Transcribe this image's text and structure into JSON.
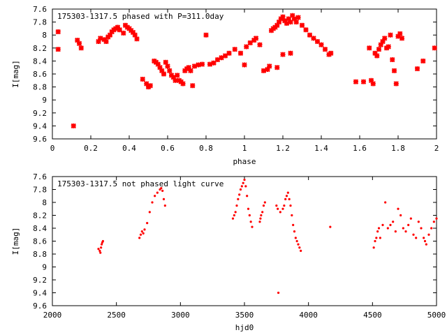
{
  "page": {
    "background": "#ffffff"
  },
  "chart_data": [
    {
      "type": "scatter",
      "title": "175303-1317.5 phased with P=311.0day",
      "xlabel": "phase",
      "ylabel": "I[mag]",
      "xlim": [
        0,
        2
      ],
      "ylim": [
        9.6,
        7.6
      ],
      "y_inverted": true,
      "xticks": [
        0,
        0.2,
        0.4,
        0.6,
        0.8,
        1,
        1.2,
        1.4,
        1.6,
        1.8,
        2
      ],
      "yticks": [
        7.6,
        7.8,
        8,
        8.2,
        8.4,
        8.6,
        8.8,
        9,
        9.2,
        9.4,
        9.6
      ],
      "marker": "star",
      "color": "#ff0000",
      "grid": false,
      "series": [
        {
          "points": [
            [
              0.03,
              7.95
            ],
            [
              0.03,
              8.22
            ],
            [
              0.11,
              9.4
            ],
            [
              0.13,
              8.08
            ],
            [
              0.14,
              8.13
            ],
            [
              0.15,
              8.2
            ],
            [
              0.24,
              8.1
            ],
            [
              0.25,
              8.05
            ],
            [
              0.27,
              8.07
            ],
            [
              0.28,
              8.1
            ],
            [
              0.29,
              8.03
            ],
            [
              0.3,
              8.0
            ],
            [
              0.31,
              7.95
            ],
            [
              0.32,
              7.92
            ],
            [
              0.33,
              7.9
            ],
            [
              0.34,
              7.88
            ],
            [
              0.35,
              7.92
            ],
            [
              0.37,
              7.97
            ],
            [
              0.38,
              7.85
            ],
            [
              0.39,
              7.88
            ],
            [
              0.4,
              7.9
            ],
            [
              0.41,
              7.93
            ],
            [
              0.42,
              7.96
            ],
            [
              0.43,
              8.0
            ],
            [
              0.44,
              8.06
            ],
            [
              0.47,
              8.68
            ],
            [
              0.49,
              8.75
            ],
            [
              0.5,
              8.8
            ],
            [
              0.51,
              8.78
            ],
            [
              0.53,
              8.4
            ],
            [
              0.54,
              8.42
            ],
            [
              0.55,
              8.45
            ],
            [
              0.56,
              8.5
            ],
            [
              0.57,
              8.55
            ],
            [
              0.58,
              8.6
            ],
            [
              0.59,
              8.42
            ],
            [
              0.6,
              8.48
            ],
            [
              0.61,
              8.55
            ],
            [
              0.62,
              8.62
            ],
            [
              0.63,
              8.65
            ],
            [
              0.64,
              8.7
            ],
            [
              0.65,
              8.62
            ],
            [
              0.66,
              8.7
            ],
            [
              0.67,
              8.72
            ],
            [
              0.68,
              8.75
            ],
            [
              0.69,
              8.55
            ],
            [
              0.7,
              8.52
            ],
            [
              0.71,
              8.5
            ],
            [
              0.72,
              8.55
            ],
            [
              0.73,
              8.78
            ],
            [
              0.74,
              8.48
            ],
            [
              0.76,
              8.46
            ],
            [
              0.78,
              8.45
            ],
            [
              0.8,
              8.0
            ],
            [
              0.82,
              8.45
            ],
            [
              0.84,
              8.43
            ],
            [
              0.86,
              8.38
            ],
            [
              0.88,
              8.35
            ],
            [
              0.9,
              8.32
            ],
            [
              0.92,
              8.28
            ],
            [
              0.95,
              8.22
            ],
            [
              0.98,
              8.28
            ],
            [
              1.0,
              8.46
            ],
            [
              1.01,
              8.18
            ],
            [
              1.03,
              8.12
            ],
            [
              1.05,
              8.08
            ],
            [
              1.06,
              8.05
            ],
            [
              1.08,
              8.15
            ],
            [
              1.1,
              8.55
            ],
            [
              1.12,
              8.53
            ],
            [
              1.13,
              8.48
            ],
            [
              1.14,
              7.93
            ],
            [
              1.15,
              7.9
            ],
            [
              1.16,
              7.88
            ],
            [
              1.17,
              7.85
            ],
            [
              1.18,
              7.8
            ],
            [
              1.19,
              7.75
            ],
            [
              1.2,
              7.72
            ],
            [
              1.21,
              7.78
            ],
            [
              1.22,
              7.82
            ],
            [
              1.23,
              7.75
            ],
            [
              1.24,
              7.8
            ],
            [
              1.25,
              7.7
            ],
            [
              1.26,
              7.75
            ],
            [
              1.27,
              7.8
            ],
            [
              1.28,
              7.73
            ],
            [
              1.3,
              7.85
            ],
            [
              1.32,
              7.92
            ],
            [
              1.34,
              8.0
            ],
            [
              1.36,
              8.05
            ],
            [
              1.38,
              8.1
            ],
            [
              1.4,
              8.15
            ],
            [
              1.42,
              8.22
            ],
            [
              1.44,
              8.3
            ],
            [
              1.45,
              8.28
            ],
            [
              1.17,
              8.5
            ],
            [
              1.2,
              8.3
            ],
            [
              1.24,
              8.28
            ],
            [
              1.58,
              8.72
            ],
            [
              1.62,
              8.72
            ],
            [
              1.65,
              8.2
            ],
            [
              1.66,
              8.7
            ],
            [
              1.67,
              8.75
            ],
            [
              1.68,
              8.28
            ],
            [
              1.69,
              8.32
            ],
            [
              1.7,
              8.22
            ],
            [
              1.71,
              8.15
            ],
            [
              1.72,
              8.1
            ],
            [
              1.73,
              8.05
            ],
            [
              1.74,
              8.2
            ],
            [
              1.75,
              8.18
            ],
            [
              1.76,
              8.0
            ],
            [
              1.77,
              8.38
            ],
            [
              1.78,
              8.55
            ],
            [
              1.79,
              8.75
            ],
            [
              1.8,
              8.02
            ],
            [
              1.81,
              7.98
            ],
            [
              1.82,
              8.05
            ],
            [
              1.9,
              8.52
            ],
            [
              1.93,
              8.4
            ],
            [
              1.99,
              8.2
            ]
          ]
        }
      ]
    },
    {
      "type": "scatter",
      "title": "175303-1317.5 not phased light curve",
      "xlabel": "hjd0",
      "ylabel": "I[mag]",
      "xlim": [
        2000,
        5000
      ],
      "ylim": [
        9.6,
        7.6
      ],
      "y_inverted": true,
      "xticks": [
        2000,
        2500,
        3000,
        3500,
        4000,
        4500,
        5000
      ],
      "yticks": [
        7.6,
        7.8,
        8,
        8.2,
        8.4,
        8.6,
        8.8,
        9,
        9.2,
        9.4,
        9.6
      ],
      "marker": "dot",
      "color": "#ff0000",
      "grid": false,
      "series": [
        {
          "points": [
            [
              2360,
              8.72
            ],
            [
              2370,
              8.75
            ],
            [
              2375,
              8.78
            ],
            [
              2380,
              8.7
            ],
            [
              2385,
              8.65
            ],
            [
              2390,
              8.62
            ],
            [
              2395,
              8.6
            ],
            [
              2680,
              8.55
            ],
            [
              2690,
              8.5
            ],
            [
              2700,
              8.45
            ],
            [
              2710,
              8.48
            ],
            [
              2720,
              8.42
            ],
            [
              2740,
              8.32
            ],
            [
              2760,
              8.15
            ],
            [
              2780,
              8.0
            ],
            [
              2800,
              7.9
            ],
            [
              2820,
              7.85
            ],
            [
              2840,
              7.8
            ],
            [
              2850,
              7.78
            ],
            [
              2860,
              7.82
            ],
            [
              2870,
              7.95
            ],
            [
              2880,
              8.05
            ],
            [
              3410,
              8.25
            ],
            [
              3420,
              8.2
            ],
            [
              3430,
              8.15
            ],
            [
              3440,
              8.05
            ],
            [
              3450,
              7.95
            ],
            [
              3460,
              7.88
            ],
            [
              3470,
              7.8
            ],
            [
              3480,
              7.75
            ],
            [
              3490,
              7.7
            ],
            [
              3500,
              7.65
            ],
            [
              3510,
              7.75
            ],
            [
              3520,
              7.9
            ],
            [
              3530,
              8.1
            ],
            [
              3540,
              8.2
            ],
            [
              3550,
              8.3
            ],
            [
              3560,
              8.38
            ],
            [
              3620,
              8.3
            ],
            [
              3625,
              8.25
            ],
            [
              3630,
              8.2
            ],
            [
              3640,
              8.15
            ],
            [
              3650,
              8.05
            ],
            [
              3660,
              8.0
            ],
            [
              3750,
              8.05
            ],
            [
              3760,
              8.1
            ],
            [
              3765,
              9.4
            ],
            [
              3780,
              8.15
            ],
            [
              3800,
              8.1
            ],
            [
              3810,
              8.05
            ],
            [
              3820,
              7.95
            ],
            [
              3830,
              7.9
            ],
            [
              3840,
              7.85
            ],
            [
              3850,
              7.95
            ],
            [
              3860,
              8.05
            ],
            [
              3870,
              8.2
            ],
            [
              3880,
              8.35
            ],
            [
              3890,
              8.45
            ],
            [
              3900,
              8.55
            ],
            [
              3910,
              8.6
            ],
            [
              3920,
              8.65
            ],
            [
              3930,
              8.7
            ],
            [
              3940,
              8.75
            ],
            [
              4170,
              8.38
            ],
            [
              4510,
              8.7
            ],
            [
              4520,
              8.6
            ],
            [
              4530,
              8.55
            ],
            [
              4540,
              8.45
            ],
            [
              4550,
              8.4
            ],
            [
              4560,
              8.55
            ],
            [
              4580,
              8.35
            ],
            [
              4600,
              8.0
            ],
            [
              4620,
              8.4
            ],
            [
              4640,
              8.35
            ],
            [
              4660,
              8.3
            ],
            [
              4680,
              8.45
            ],
            [
              4700,
              8.1
            ],
            [
              4720,
              8.2
            ],
            [
              4740,
              8.4
            ],
            [
              4760,
              8.45
            ],
            [
              4780,
              8.35
            ],
            [
              4800,
              8.25
            ],
            [
              4820,
              8.5
            ],
            [
              4840,
              8.55
            ],
            [
              4860,
              8.3
            ],
            [
              4880,
              8.4
            ],
            [
              4900,
              8.55
            ],
            [
              4910,
              8.6
            ],
            [
              4920,
              8.65
            ],
            [
              4940,
              8.5
            ],
            [
              4960,
              8.4
            ],
            [
              4980,
              8.3
            ],
            [
              5000,
              8.25
            ]
          ]
        }
      ]
    }
  ]
}
